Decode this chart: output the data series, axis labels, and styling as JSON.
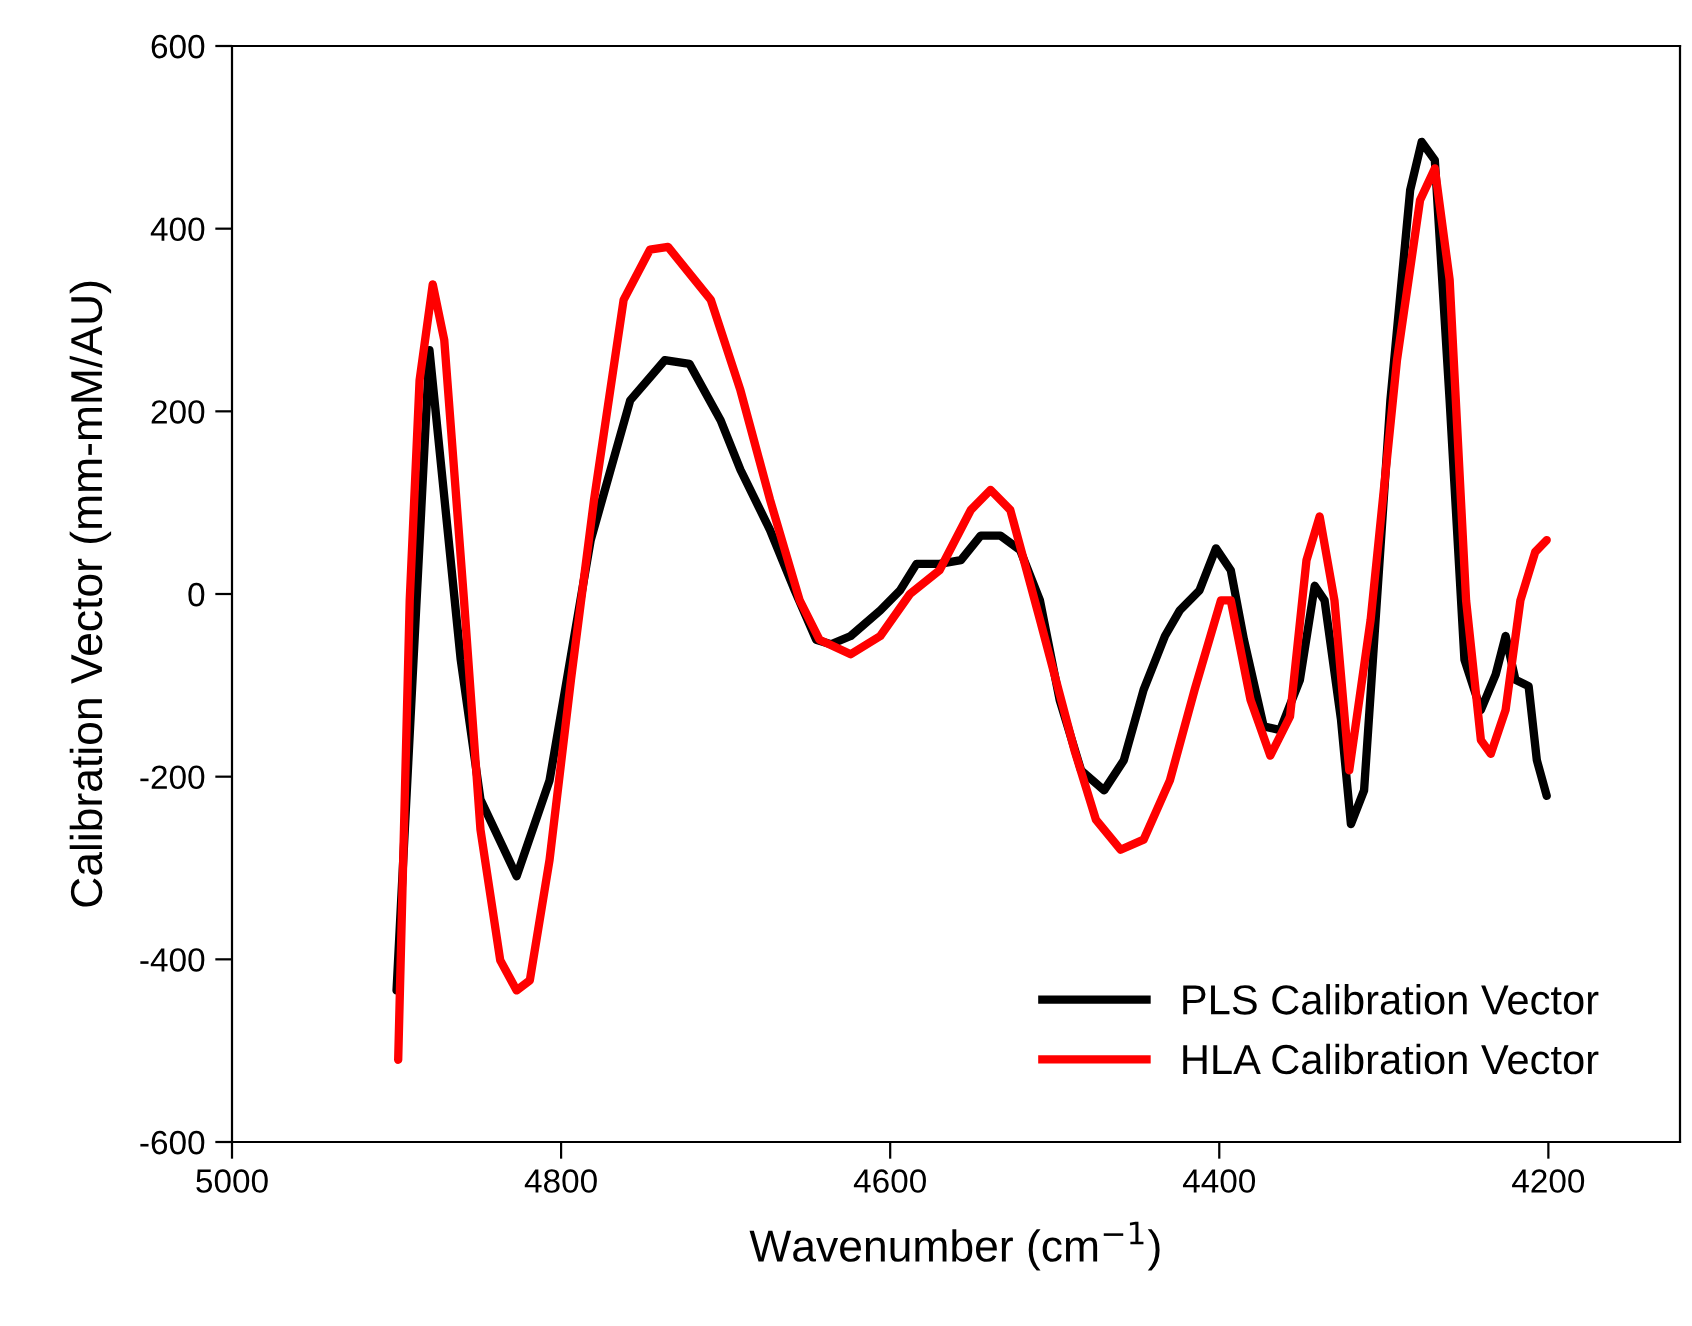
{
  "chart_data": {
    "type": "line",
    "xlabel": "Wavenumber (cm$^{−1}$)",
    "ylabel": "Calibration Vector (mm-mM/AU)",
    "xlim": [
      5000,
      4120
    ],
    "xticks": [
      5000,
      4800,
      4600,
      4400,
      4200
    ],
    "ylim": [
      -600,
      600
    ],
    "yticks": [
      -600,
      -400,
      -200,
      0,
      200,
      400,
      600
    ],
    "grid": false,
    "legend": "bottom right",
    "marker": "none",
    "line_style": "solid",
    "series": [
      {
        "name": "PLS Calibration Vector",
        "color": "#000000",
        "x": [
          4900,
          4880,
          4861,
          4849,
          4827,
          4807,
          4782,
          4758,
          4737,
          4722,
          4703,
          4691,
          4673,
          4658,
          4645,
          4636,
          4624,
          4606,
          4594,
          4584,
          4570,
          4557,
          4545,
          4533,
          4521,
          4509,
          4497,
          4484,
          4470,
          4458,
          4446,
          4433,
          4424,
          4412,
          4402,
          4393,
          4385,
          4373,
          4363,
          4351,
          4342,
          4336,
          4326,
          4320,
          4312,
          4296,
          4284,
          4277,
          4269,
          4260,
          4251,
          4241,
          4232,
          4226,
          4220,
          4212,
          4207,
          4201
        ],
        "values": [
          -434,
          267,
          -72,
          -225,
          -309,
          -204,
          59,
          212,
          256,
          252,
          190,
          136,
          70,
          4,
          -50,
          -55,
          -46,
          -18,
          4,
          33,
          33,
          37,
          64,
          64,
          48,
          -7,
          -116,
          -193,
          -215,
          -182,
          -105,
          -46,
          -18,
          4,
          50,
          26,
          -50,
          -145,
          -149,
          -94,
          9,
          -7,
          -138,
          -252,
          -215,
          212,
          442,
          495,
          475,
          212,
          -72,
          -127,
          -88,
          -46,
          -94,
          -101,
          -182,
          -221
        ]
      },
      {
        "name": "HLA Calibration Vector",
        "color": "#ff0000",
        "x": [
          4899,
          4892,
          4886,
          4878,
          4871,
          4859,
          4849,
          4837,
          4827,
          4819,
          4807,
          4794,
          4780,
          4762,
          4746,
          4735,
          4709,
          4691,
          4673,
          4655,
          4643,
          4624,
          4606,
          4588,
          4570,
          4551,
          4539,
          4527,
          4509,
          4488,
          4475,
          4460,
          4446,
          4430,
          4415,
          4399,
          4393,
          4381,
          4369,
          4357,
          4347,
          4339,
          4330,
          4321,
          4308,
          4292,
          4278,
          4269,
          4260,
          4250,
          4241,
          4235,
          4226,
          4217,
          4208,
          4201
        ],
        "values": [
          -510,
          -7,
          234,
          339,
          278,
          -7,
          -258,
          -401,
          -434,
          -423,
          -291,
          -94,
          103,
          322,
          377,
          380,
          322,
          223,
          103,
          -7,
          -50,
          -66,
          -46,
          0,
          26,
          92,
          114,
          92,
          -28,
          -171,
          -247,
          -280,
          -269,
          -204,
          -105,
          -7,
          -7,
          -116,
          -177,
          -134,
          37,
          85,
          -7,
          -193,
          -28,
          256,
          431,
          466,
          344,
          -7,
          -160,
          -175,
          -127,
          -7,
          46,
          59
        ]
      }
    ]
  }
}
